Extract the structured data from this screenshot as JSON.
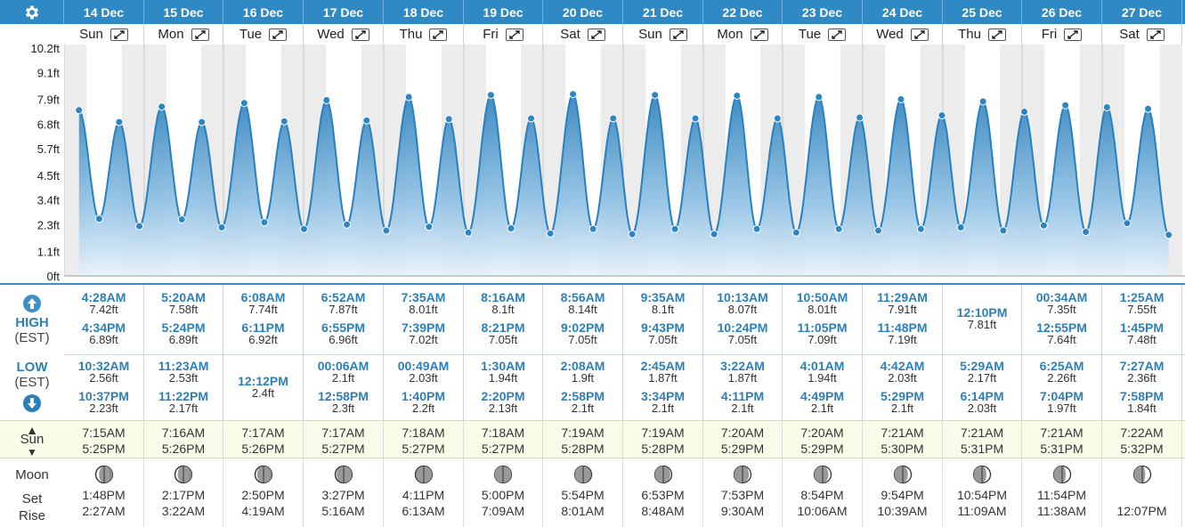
{
  "header": {
    "settings_icon": "gear-icon",
    "dates": [
      "14 Dec",
      "15 Dec",
      "16 Dec",
      "17 Dec",
      "18 Dec",
      "19 Dec",
      "20 Dec",
      "21 Dec",
      "22 Dec",
      "23 Dec",
      "24 Dec",
      "25 Dec",
      "26 Dec",
      "27 Dec"
    ],
    "weekdays": [
      "Sun",
      "Mon",
      "Tue",
      "Wed",
      "Thu",
      "Fri",
      "Sat",
      "Sun",
      "Mon",
      "Tue",
      "Wed",
      "Thu",
      "Fri",
      "Sat"
    ]
  },
  "y_axis": {
    "labels": [
      "0ft",
      "1.1ft",
      "2.3ft",
      "3.4ft",
      "4.5ft",
      "5.7ft",
      "6.8ft",
      "7.9ft",
      "9.1ft",
      "10.2ft"
    ]
  },
  "labels": {
    "high": "HIGH",
    "low": "LOW",
    "tz": "(EST)",
    "sun": "Sun",
    "moon": "Moon",
    "set": "Set",
    "rise": "Rise"
  },
  "colors": {
    "header": "#2e89c5",
    "curve": "#2a7fbd",
    "tide_time": "#2d7fba",
    "sun_bg": "#fbfbe9"
  },
  "days": [
    {
      "high": [
        {
          "t": "4:28AM",
          "h": "7.42ft"
        },
        {
          "t": "4:34PM",
          "h": "6.89ft"
        }
      ],
      "low": [
        {
          "t": "10:32AM",
          "h": "2.56ft"
        },
        {
          "t": "10:37PM",
          "h": "2.23ft"
        }
      ],
      "sun": [
        "7:15AM",
        "5:25PM"
      ],
      "moon": {
        "set": "1:48PM",
        "rise": "2:27AM",
        "phase": 0.3
      }
    },
    {
      "high": [
        {
          "t": "5:20AM",
          "h": "7.58ft"
        },
        {
          "t": "5:24PM",
          "h": "6.89ft"
        }
      ],
      "low": [
        {
          "t": "11:23AM",
          "h": "2.53ft"
        },
        {
          "t": "11:22PM",
          "h": "2.17ft"
        }
      ],
      "sun": [
        "7:16AM",
        "5:26PM"
      ],
      "moon": {
        "set": "2:17PM",
        "rise": "3:22AM",
        "phase": 0.34
      }
    },
    {
      "high": [
        {
          "t": "6:08AM",
          "h": "7.74ft"
        },
        {
          "t": "6:11PM",
          "h": "6.92ft"
        }
      ],
      "low": [
        {
          "t": "12:12PM",
          "h": "2.4ft"
        }
      ],
      "sun": [
        "7:17AM",
        "5:26PM"
      ],
      "moon": {
        "set": "2:50PM",
        "rise": "4:19AM",
        "phase": 0.38
      }
    },
    {
      "high": [
        {
          "t": "6:52AM",
          "h": "7.87ft"
        },
        {
          "t": "6:55PM",
          "h": "6.96ft"
        }
      ],
      "low": [
        {
          "t": "00:06AM",
          "h": "2.1ft"
        },
        {
          "t": "12:58PM",
          "h": "2.3ft"
        }
      ],
      "sun": [
        "7:17AM",
        "5:27PM"
      ],
      "moon": {
        "set": "3:27PM",
        "rise": "5:16AM",
        "phase": 0.42
      }
    },
    {
      "high": [
        {
          "t": "7:35AM",
          "h": "8.01ft"
        },
        {
          "t": "7:39PM",
          "h": "7.02ft"
        }
      ],
      "low": [
        {
          "t": "00:49AM",
          "h": "2.03ft"
        },
        {
          "t": "1:40PM",
          "h": "2.2ft"
        }
      ],
      "sun": [
        "7:18AM",
        "5:27PM"
      ],
      "moon": {
        "set": "4:11PM",
        "rise": "6:13AM",
        "phase": 0.47
      }
    },
    {
      "high": [
        {
          "t": "8:16AM",
          "h": "8.1ft"
        },
        {
          "t": "8:21PM",
          "h": "7.05ft"
        }
      ],
      "low": [
        {
          "t": "1:30AM",
          "h": "1.94ft"
        },
        {
          "t": "2:20PM",
          "h": "2.13ft"
        }
      ],
      "sun": [
        "7:18AM",
        "5:27PM"
      ],
      "moon": {
        "set": "5:00PM",
        "rise": "7:09AM",
        "phase": 0.5
      }
    },
    {
      "high": [
        {
          "t": "8:56AM",
          "h": "8.14ft"
        },
        {
          "t": "9:02PM",
          "h": "7.05ft"
        }
      ],
      "low": [
        {
          "t": "2:08AM",
          "h": "1.9ft"
        },
        {
          "t": "2:58PM",
          "h": "2.1ft"
        }
      ],
      "sun": [
        "7:19AM",
        "5:28PM"
      ],
      "moon": {
        "set": "5:54PM",
        "rise": "8:01AM",
        "phase": 0.54
      }
    },
    {
      "high": [
        {
          "t": "9:35AM",
          "h": "8.1ft"
        },
        {
          "t": "9:43PM",
          "h": "7.05ft"
        }
      ],
      "low": [
        {
          "t": "2:45AM",
          "h": "1.87ft"
        },
        {
          "t": "3:34PM",
          "h": "2.1ft"
        }
      ],
      "sun": [
        "7:19AM",
        "5:28PM"
      ],
      "moon": {
        "set": "6:53PM",
        "rise": "8:48AM",
        "phase": 0.58
      }
    },
    {
      "high": [
        {
          "t": "10:13AM",
          "h": "8.07ft"
        },
        {
          "t": "10:24PM",
          "h": "7.05ft"
        }
      ],
      "low": [
        {
          "t": "3:22AM",
          "h": "1.87ft"
        },
        {
          "t": "4:11PM",
          "h": "2.1ft"
        }
      ],
      "sun": [
        "7:20AM",
        "5:29PM"
      ],
      "moon": {
        "set": "7:53PM",
        "rise": "9:30AM",
        "phase": 0.62
      }
    },
    {
      "high": [
        {
          "t": "10:50AM",
          "h": "8.01ft"
        },
        {
          "t": "11:05PM",
          "h": "7.09ft"
        }
      ],
      "low": [
        {
          "t": "4:01AM",
          "h": "1.94ft"
        },
        {
          "t": "4:49PM",
          "h": "2.1ft"
        }
      ],
      "sun": [
        "7:20AM",
        "5:29PM"
      ],
      "moon": {
        "set": "8:54PM",
        "rise": "10:06AM",
        "phase": 0.66
      }
    },
    {
      "high": [
        {
          "t": "11:29AM",
          "h": "7.91ft"
        },
        {
          "t": "11:48PM",
          "h": "7.19ft"
        }
      ],
      "low": [
        {
          "t": "4:42AM",
          "h": "2.03ft"
        },
        {
          "t": "5:29PM",
          "h": "2.1ft"
        }
      ],
      "sun": [
        "7:21AM",
        "5:30PM"
      ],
      "moon": {
        "set": "9:54PM",
        "rise": "10:39AM",
        "phase": 0.7
      }
    },
    {
      "high": [
        {
          "t": "12:10PM",
          "h": "7.81ft"
        }
      ],
      "low": [
        {
          "t": "5:29AM",
          "h": "2.17ft"
        },
        {
          "t": "6:14PM",
          "h": "2.03ft"
        }
      ],
      "sun": [
        "7:21AM",
        "5:31PM"
      ],
      "moon": {
        "set": "10:54PM",
        "rise": "11:09AM",
        "phase": 0.74
      }
    },
    {
      "high": [
        {
          "t": "00:34AM",
          "h": "7.35ft"
        },
        {
          "t": "12:55PM",
          "h": "7.64ft"
        }
      ],
      "low": [
        {
          "t": "6:25AM",
          "h": "2.26ft"
        },
        {
          "t": "7:04PM",
          "h": "1.97ft"
        }
      ],
      "sun": [
        "7:21AM",
        "5:31PM"
      ],
      "moon": {
        "set": "11:54PM",
        "rise": "11:38AM",
        "phase": 0.78
      }
    },
    {
      "high": [
        {
          "t": "1:25AM",
          "h": "7.55ft"
        },
        {
          "t": "1:45PM",
          "h": "7.48ft"
        }
      ],
      "low": [
        {
          "t": "7:27AM",
          "h": "2.36ft"
        },
        {
          "t": "7:58PM",
          "h": "1.84ft"
        }
      ],
      "sun": [
        "7:22AM",
        "5:32PM"
      ],
      "moon": {
        "set": "",
        "rise": "12:07PM",
        "phase": 0.82
      }
    }
  ]
}
